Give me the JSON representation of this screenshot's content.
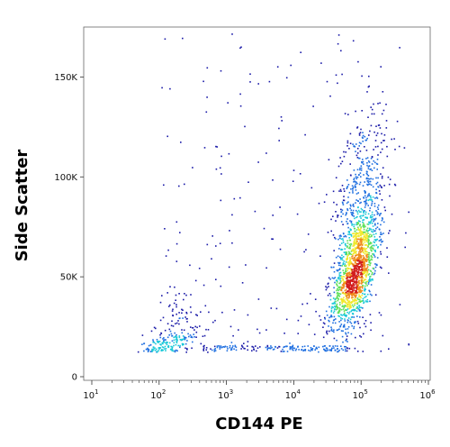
{
  "chart_data": {
    "type": "scatter",
    "style": "density-colored flow cytometry dot plot",
    "xlabel": "CD144 PE",
    "ylabel": "Side Scatter",
    "x_scale": "log",
    "xlim": [
      10,
      1000000
    ],
    "ylim": [
      0,
      175000
    ],
    "x_ticks": [
      {
        "value": 10,
        "base": "10",
        "exp": "1"
      },
      {
        "value": 100,
        "base": "10",
        "exp": "2"
      },
      {
        "value": 1000,
        "base": "10",
        "exp": "3"
      },
      {
        "value": 10000,
        "base": "10",
        "exp": "4"
      },
      {
        "value": 100000,
        "base": "10",
        "exp": "5"
      },
      {
        "value": 1000000,
        "base": "10",
        "exp": "6"
      }
    ],
    "y_ticks": [
      {
        "value": 0,
        "label": "0"
      },
      {
        "value": 50000,
        "label": "50K"
      },
      {
        "value": 100000,
        "label": "100K"
      },
      {
        "value": 150000,
        "label": "150K"
      }
    ],
    "density_colors": [
      "#1a1aa8",
      "#1f6fe0",
      "#19c8d8",
      "#5fe05a",
      "#f0e82a",
      "#f08a1c",
      "#d21c1c"
    ],
    "populations": [
      {
        "name": "",
        "center_x": 80000,
        "center_y": 52000,
        "count": 1850
      },
      {
        "name": "",
        "center_x": 140,
        "center_y": 17000,
        "count": 220
      }
    ],
    "grid": false,
    "legend": "none"
  }
}
